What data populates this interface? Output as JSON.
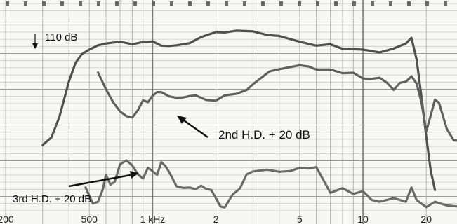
{
  "chart_data": {
    "type": "line",
    "title": "",
    "xlabel": "",
    "ylabel": "",
    "x_scale": "log",
    "x_ticks": [
      {
        "value": 200,
        "label": "200"
      },
      {
        "value": 500,
        "label": "500"
      },
      {
        "value": 1000,
        "label": "1 kHz"
      },
      {
        "value": 2000,
        "label": "2"
      },
      {
        "value": 5000,
        "label": "5"
      },
      {
        "value": 10000,
        "label": "10"
      },
      {
        "value": 20000,
        "label": "20"
      }
    ],
    "xlim": [
      200,
      28000
    ],
    "ylim_db": [
      55,
      115
    ],
    "grid": true,
    "annotations": {
      "reference": "110 dB",
      "second": "2nd H.D. + 20 dB",
      "third": "3rd H.D. + 20 dB"
    },
    "series": [
      {
        "name": "",
        "color": "#505050",
        "points": [
          [
            300,
            74.4
          ],
          [
            330,
            76.5
          ],
          [
            360,
            82.2
          ],
          [
            400,
            92.2
          ],
          [
            430,
            97.4
          ],
          [
            460,
            99.8
          ],
          [
            500,
            101.1
          ],
          [
            550,
            102.3
          ],
          [
            600,
            102.8
          ],
          [
            700,
            103.3
          ],
          [
            800,
            102.6
          ],
          [
            900,
            103.2
          ],
          [
            1000,
            103.4
          ],
          [
            1100,
            102.2
          ],
          [
            1200,
            102.1
          ],
          [
            1300,
            102.3
          ],
          [
            1500,
            102.9
          ],
          [
            1700,
            104.6
          ],
          [
            2000,
            106.0
          ],
          [
            2200,
            105.9
          ],
          [
            2500,
            106.4
          ],
          [
            3000,
            106.2
          ],
          [
            3500,
            105.2
          ],
          [
            4000,
            104.9
          ],
          [
            5000,
            103.3
          ],
          [
            6000,
            102.2
          ],
          [
            7000,
            102.6
          ],
          [
            8000,
            101.3
          ],
          [
            10000,
            101.1
          ],
          [
            12000,
            100.3
          ],
          [
            14000,
            101.4
          ],
          [
            16000,
            102.8
          ],
          [
            17000,
            104.4
          ],
          [
            18000,
            98.3
          ],
          [
            19000,
            87.7
          ],
          [
            20000,
            76.8
          ],
          [
            21000,
            67.2
          ],
          [
            22000,
            61.8
          ]
        ]
      },
      {
        "name": "2nd H.D. + 20 dB",
        "color": "#606060",
        "points": [
          [
            550,
            94.7
          ],
          [
            600,
            90.0
          ],
          [
            650,
            86.3
          ],
          [
            700,
            83.8
          ],
          [
            750,
            82.5
          ],
          [
            800,
            82.1
          ],
          [
            850,
            84.1
          ],
          [
            900,
            86.9
          ],
          [
            950,
            86.4
          ],
          [
            1000,
            88.2
          ],
          [
            1050,
            89.2
          ],
          [
            1100,
            89.2
          ],
          [
            1200,
            88.0
          ],
          [
            1300,
            87.6
          ],
          [
            1400,
            87.7
          ],
          [
            1500,
            88.1
          ],
          [
            1600,
            88.3
          ],
          [
            1800,
            87.0
          ],
          [
            2000,
            86.8
          ],
          [
            2200,
            88.3
          ],
          [
            2500,
            88.7
          ],
          [
            2800,
            89.8
          ],
          [
            3000,
            91.4
          ],
          [
            3300,
            93.3
          ],
          [
            3600,
            95.0
          ],
          [
            4000,
            95.6
          ],
          [
            4500,
            96.2
          ],
          [
            5000,
            96.7
          ],
          [
            5500,
            96.4
          ],
          [
            6000,
            95.5
          ],
          [
            7000,
            95.5
          ],
          [
            8000,
            94.5
          ],
          [
            9000,
            94.6
          ],
          [
            10000,
            93.0
          ],
          [
            11000,
            92.9
          ],
          [
            12000,
            93.2
          ],
          [
            13000,
            91.8
          ],
          [
            14000,
            89.8
          ],
          [
            15000,
            91.8
          ],
          [
            16000,
            92.1
          ],
          [
            17000,
            93.6
          ],
          [
            18000,
            91.6
          ],
          [
            19000,
            86.2
          ],
          [
            20000,
            78.2
          ],
          [
            21000,
            82.7
          ],
          [
            22000,
            87.1
          ],
          [
            23000,
            86.2
          ],
          [
            25000,
            79.0
          ],
          [
            27000,
            75.7
          ],
          [
            28000,
            75.6
          ]
        ]
      },
      {
        "name": "3rd H.D. + 20 dB",
        "color": "#6a6a6a",
        "points": [
          [
            480,
            62.5
          ],
          [
            520,
            58.0
          ],
          [
            550,
            58.5
          ],
          [
            580,
            62.0
          ],
          [
            600,
            66.1
          ],
          [
            630,
            63.3
          ],
          [
            660,
            64.1
          ],
          [
            700,
            69.0
          ],
          [
            750,
            70.1
          ],
          [
            800,
            68.7
          ],
          [
            850,
            66.2
          ],
          [
            900,
            65.0
          ],
          [
            950,
            68.0
          ],
          [
            1000,
            67.1
          ],
          [
            1050,
            66.0
          ],
          [
            1100,
            69.6
          ],
          [
            1150,
            68.5
          ],
          [
            1200,
            66.8
          ],
          [
            1300,
            62.8
          ],
          [
            1400,
            62.4
          ],
          [
            1500,
            62.5
          ],
          [
            1600,
            62.0
          ],
          [
            1700,
            63.0
          ],
          [
            1800,
            62.1
          ],
          [
            1900,
            61.8
          ],
          [
            2000,
            59.5
          ],
          [
            2100,
            57.2
          ],
          [
            2200,
            56.9
          ],
          [
            2400,
            60.5
          ],
          [
            2600,
            62.2
          ],
          [
            2800,
            66.2
          ],
          [
            3000,
            67.0
          ],
          [
            3500,
            67.5
          ],
          [
            4000,
            66.9
          ],
          [
            4500,
            67.1
          ],
          [
            5000,
            68.0
          ],
          [
            5500,
            67.8
          ],
          [
            6000,
            68.2
          ],
          [
            6500,
            64.5
          ],
          [
            7000,
            61.0
          ],
          [
            8000,
            62.3
          ],
          [
            9000,
            60.7
          ],
          [
            10000,
            61.5
          ],
          [
            11000,
            59.0
          ],
          [
            12000,
            58.5
          ],
          [
            14000,
            59.5
          ],
          [
            16000,
            58.5
          ],
          [
            17000,
            62.5
          ],
          [
            18000,
            59.0
          ],
          [
            20000,
            57.0
          ],
          [
            22000,
            58.5
          ],
          [
            25000,
            57.5
          ],
          [
            28000,
            57.2
          ]
        ]
      }
    ]
  }
}
